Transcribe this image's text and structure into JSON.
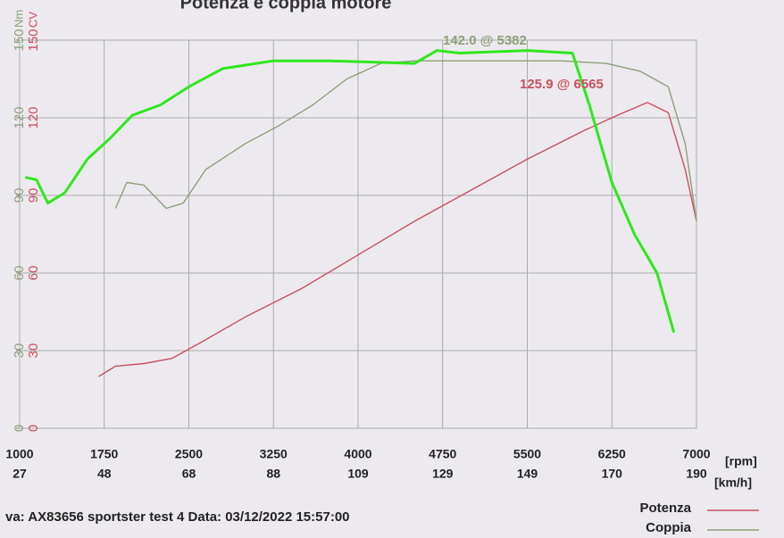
{
  "chart_data": {
    "type": "line",
    "title": "Potenza e coppia motore",
    "xlim": [
      1000,
      7000
    ],
    "xticks": [
      1000,
      1750,
      2500,
      3250,
      4000,
      4750,
      5500,
      6250,
      7000
    ],
    "xlabel": "[rpm]",
    "x2ticks": [
      27,
      48,
      68,
      88,
      109,
      129,
      149,
      170,
      190
    ],
    "x2label": "[km/h]",
    "ylim": [
      0,
      150
    ],
    "yticks": [
      0,
      30,
      60,
      90,
      120,
      150
    ],
    "ylabel": "Nm",
    "y2lim": [
      0,
      150
    ],
    "y2ticks": [
      0,
      30,
      60,
      90,
      120,
      150
    ],
    "y2label": "CV",
    "grid": true,
    "series": [
      {
        "name": "Potenza",
        "color": "#c8505e",
        "axis": "y2",
        "x": [
          1700,
          1850,
          2100,
          2350,
          2600,
          3000,
          3500,
          4000,
          4500,
          5000,
          5500,
          6000,
          6300,
          6565,
          6750,
          6900,
          7000
        ],
        "values": [
          20,
          24,
          25,
          27,
          33,
          43,
          54,
          67,
          80,
          92,
          104,
          115,
          121,
          125.9,
          122,
          100,
          80
        ]
      },
      {
        "name": "Coppia",
        "color": "#8fa07a",
        "x": [
          1850,
          1950,
          2100,
          2300,
          2450,
          2650,
          3000,
          3300,
          3600,
          3900,
          4200,
          4500,
          5000,
          5382,
          5800,
          6200,
          6500,
          6750,
          6900,
          7000
        ],
        "values": [
          85,
          95,
          94,
          85,
          87,
          100,
          110,
          117,
          125,
          135,
          141,
          142,
          142,
          142,
          142,
          141,
          138,
          132,
          110,
          80
        ]
      },
      {
        "color": "#2ee81c",
        "x": [
          1050,
          1150,
          1250,
          1400,
          1600,
          1800,
          2000,
          2250,
          2500,
          2800,
          3250,
          3750,
          4500,
          4700,
          4900,
          5500,
          5900,
          6050,
          6250,
          6450,
          6650,
          6800
        ],
        "values": [
          97,
          96,
          87,
          91,
          104,
          112,
          121,
          125,
          132,
          139,
          142,
          142,
          141,
          146,
          145,
          146,
          145,
          125,
          95,
          75,
          60,
          37
        ]
      }
    ],
    "annotations": [
      {
        "text": "142.0 @ 5382",
        "color": "#8fa07a"
      },
      {
        "text": "125.9 @ 6565",
        "color": "#c8505e"
      }
    ],
    "footer": "va: AX83656 sportster  test 4  Data: 03/12/2022 15:57:00"
  }
}
